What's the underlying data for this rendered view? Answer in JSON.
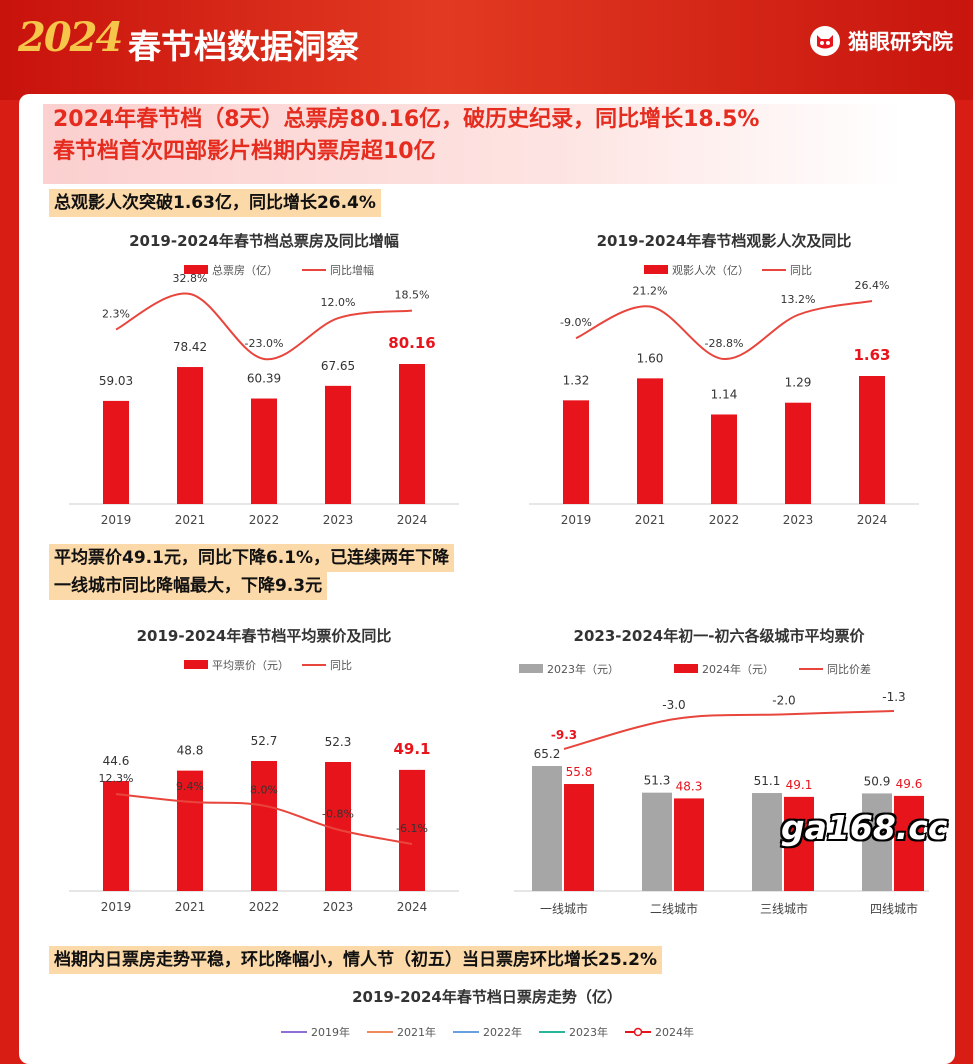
{
  "header": {
    "year_logo": "2024",
    "title": "春节档数据洞察",
    "brand": "猫眼研究院"
  },
  "headline": {
    "line1": "2024年春节档（8天）总票房80.16亿，破历史纪录，同比增长18.5%",
    "line2": "春节档首次四部影片档期内票房超10亿"
  },
  "highlights": {
    "audience": "总观影人次突破1.63亿，同比增长26.4%",
    "price_line1": "平均票价49.1元，同比下降6.1%，已连续两年下降",
    "price_line2": "一线城市同比降幅最大，下降9.3元",
    "daily": "档期内日票房走势平稳，环比降幅小，情人节（初五）当日票房环比增长25.2%"
  },
  "colors": {
    "red": "#e8141c",
    "gray": "#a6a6a6",
    "line": "#e8453c",
    "highlight": "#fcd9a8"
  },
  "chart_data": [
    {
      "type": "bar",
      "title": "2019-2024年春节档总票房及同比增幅",
      "categories": [
        "2019",
        "2021",
        "2022",
        "2023",
        "2024"
      ],
      "series": [
        {
          "name": "总票房（亿）",
          "values": [
            59.03,
            78.42,
            60.39,
            67.65,
            80.16
          ]
        },
        {
          "name": "同比增幅",
          "values": [
            "2.3%",
            "32.8%",
            "-23.0%",
            "12.0%",
            "18.5%"
          ],
          "numeric": [
            2.3,
            32.8,
            -23.0,
            12.0,
            18.5
          ],
          "kind": "line"
        }
      ]
    },
    {
      "type": "bar",
      "title": "2019-2024年春节档观影人次及同比",
      "categories": [
        "2019",
        "2021",
        "2022",
        "2023",
        "2024"
      ],
      "series": [
        {
          "name": "观影人次（亿）",
          "values": [
            1.32,
            1.6,
            1.14,
            1.29,
            1.63
          ],
          "labels": [
            "1.32",
            "1.60",
            "1.14",
            "1.29",
            "1.63"
          ]
        },
        {
          "name": "同比",
          "values": [
            "-9.0%",
            "21.2%",
            "-28.8%",
            "13.2%",
            "26.4%"
          ],
          "numeric": [
            -9.0,
            21.2,
            -28.8,
            13.2,
            26.4
          ],
          "kind": "line"
        }
      ]
    },
    {
      "type": "bar",
      "title": "2019-2024年春节档平均票价及同比",
      "categories": [
        "2019",
        "2021",
        "2022",
        "2023",
        "2024"
      ],
      "series": [
        {
          "name": "平均票价（元）",
          "values": [
            44.6,
            48.8,
            52.7,
            52.3,
            49.1
          ]
        },
        {
          "name": "同比",
          "values": [
            "12.3%",
            "9.4%",
            "8.0%",
            "-0.8%",
            "-6.1%"
          ],
          "numeric": [
            12.3,
            9.4,
            8.0,
            -0.8,
            -6.1
          ],
          "kind": "line"
        }
      ]
    },
    {
      "type": "bar",
      "title": "2023-2024年初一-初六各级城市平均票价",
      "categories": [
        "一线城市",
        "二线城市",
        "三线城市",
        "四线城市"
      ],
      "series": [
        {
          "name": "2023年（元）",
          "values": [
            65.2,
            51.3,
            51.1,
            50.9
          ]
        },
        {
          "name": "2024年（元）",
          "values": [
            55.8,
            48.3,
            49.1,
            49.6
          ]
        },
        {
          "name": "同比价差",
          "values": [
            "-9.3",
            "-3.0",
            "-2.0",
            "-1.3"
          ],
          "numeric": [
            -9.3,
            -3.0,
            -2.0,
            -1.3
          ],
          "kind": "line"
        }
      ]
    },
    {
      "type": "line",
      "title": "2019-2024年春节档日票房走势（亿）",
      "series": [
        {
          "name": "2019年",
          "color": "#8e6fd6"
        },
        {
          "name": "2021年",
          "color": "#f08a5d"
        },
        {
          "name": "2022年",
          "color": "#6a9fe0"
        },
        {
          "name": "2023年",
          "color": "#2bb59a"
        },
        {
          "name": "2024年",
          "color": "#e8141c"
        }
      ]
    }
  ],
  "watermark": "ga168.cc"
}
